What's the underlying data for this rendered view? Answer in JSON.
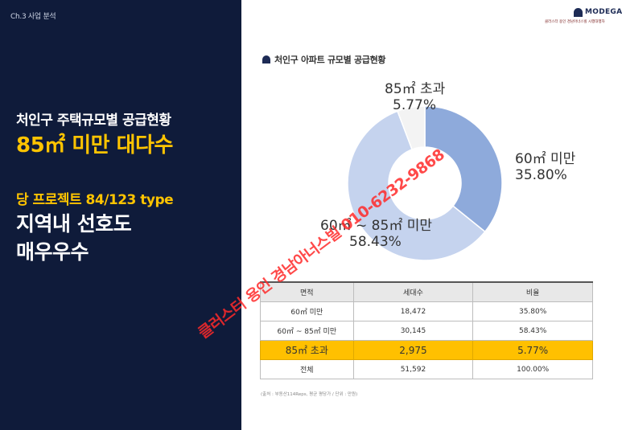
{
  "left_panel": {
    "chapter": "Ch.3 사업 분석",
    "headline1": "처인구 주택규모별 공급현황",
    "headline2": "85㎡ 미만 대다수",
    "subhead": "당 프로젝트 84/123 type",
    "line4": "지역내 선호도",
    "line5": "매우우수",
    "background": "#0f1b3a",
    "accent": "#ffc400"
  },
  "logo": {
    "brand": "MODEGA",
    "tagline": "클러스터 용인 경남아너스빌 시행대행자"
  },
  "chart_data": {
    "type": "pie",
    "title": "처인구 아파트 규모별 공급현황",
    "slices": [
      {
        "label": "60㎡ 미만",
        "value": 35.8,
        "display": "35.80%",
        "color": "#8eaadb"
      },
      {
        "label": "60㎡ ~ 85㎡ 미만",
        "value": 58.43,
        "display": "58.43%",
        "color": "#c5d3ee"
      },
      {
        "label": "85㎡ 초과",
        "value": 5.77,
        "display": "5.77%",
        "color": "#f3f3f3"
      }
    ]
  },
  "table": {
    "headers": [
      "면적",
      "세대수",
      "비율"
    ],
    "rows": [
      [
        "60㎡ 미만",
        "18,472",
        "35.80%"
      ],
      [
        "60㎡ ~ 85㎡ 미만",
        "30,145",
        "58.43%"
      ],
      [
        "85㎡ 초과",
        "2,975",
        "5.77%"
      ],
      [
        "전체",
        "51,592",
        "100.00%"
      ]
    ],
    "highlight_color": "#ffc000"
  },
  "source_note": "(출처 : 부동산114Reps, 평균 평당가 / 단위 : 만원)",
  "watermark": "클러스터 용인 경남아너스빌 010-6232-9868"
}
